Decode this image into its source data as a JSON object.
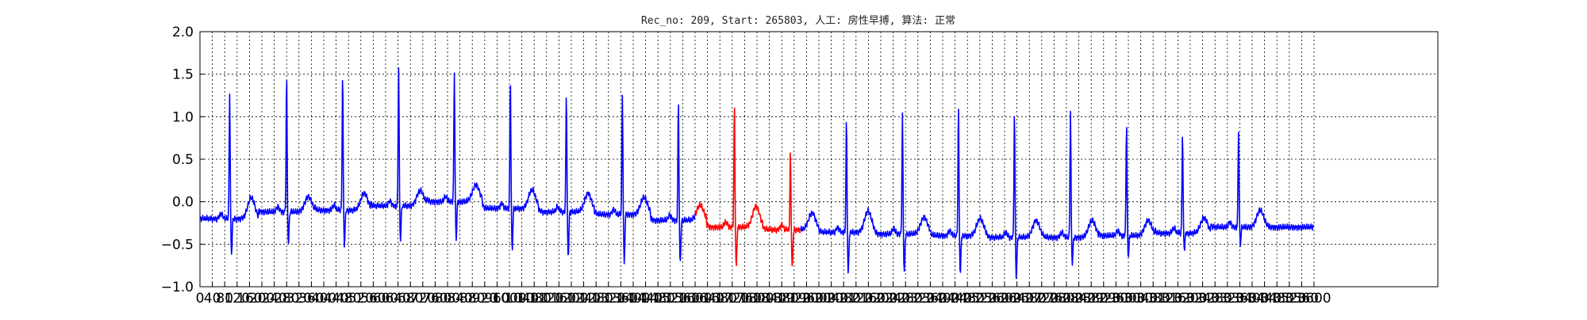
{
  "chart_data": {
    "type": "line",
    "title": "Rec_no: 209, Start: 265803, 人工: 房性早搏, 算法: 正常",
    "xlabel": "",
    "ylabel": "",
    "xlim": [
      0,
      4000
    ],
    "ylim": [
      -1.0,
      2.0
    ],
    "grid": true,
    "y_ticks": [
      "−1.0",
      "−0.5",
      "0.0",
      "0.5",
      "1.0",
      "1.5",
      "2.0"
    ],
    "y_tick_values": [
      -1.0,
      -0.5,
      0.0,
      0.5,
      1.0,
      1.5,
      2.0
    ],
    "x_tick_values": [
      0,
      40,
      80,
      120,
      160,
      200,
      240,
      280,
      320,
      360,
      400,
      440,
      480,
      520,
      560,
      600,
      640,
      680,
      720,
      760,
      800,
      840,
      880,
      920,
      960,
      1000,
      1040,
      1080,
      1120,
      1160,
      1200,
      1240,
      1280,
      1320,
      1360,
      1400,
      1440,
      1480,
      1520,
      1560,
      1600,
      1640,
      1680,
      1720,
      1760,
      1800,
      1840,
      1880,
      1920,
      1960,
      2000,
      2040,
      2080,
      2120,
      2160,
      2200,
      2240,
      2280,
      2320,
      2360,
      2400,
      2440,
      2480,
      2520,
      2560,
      2600,
      2640,
      2680,
      2720,
      2760,
      2800,
      2840,
      2880,
      2920,
      2960,
      3000,
      3040,
      3080,
      3120,
      3160,
      3200,
      3240,
      3280,
      3320,
      3360,
      3400,
      3440,
      3480,
      3520,
      3560,
      3600
    ],
    "x_tick_labels": [
      "0",
      "40",
      "80",
      "120",
      "160",
      "200",
      "240",
      "280",
      "320",
      "360",
      "400",
      "440",
      "480",
      "520",
      "560",
      "600",
      "640",
      "680",
      "720",
      "760",
      "800",
      "840",
      "880",
      "920",
      "960",
      "1000",
      "1040",
      "1080",
      "1120",
      "1160",
      "1200",
      "1240",
      "1280",
      "1320",
      "1360",
      "1400",
      "1440",
      "1480",
      "1520",
      "1560",
      "1600",
      "1640",
      "1680",
      "1720",
      "1760",
      "1800",
      "1840",
      "1880",
      "1920",
      "1960",
      "2000",
      "2040",
      "2080",
      "2120",
      "2160",
      "2200",
      "2240",
      "2280",
      "2320",
      "2360",
      "2400",
      "2440",
      "2480",
      "2520",
      "2560",
      "2600",
      "2640",
      "2680",
      "2720",
      "2760",
      "2800",
      "2840",
      "2880",
      "2920",
      "2960",
      "3000",
      "3040",
      "3080",
      "3120",
      "3160",
      "3200",
      "3240",
      "3280",
      "3320",
      "3360",
      "3400",
      "3440",
      "3480",
      "3520",
      "3560",
      "3600"
    ],
    "beats": [
      {
        "t": 96,
        "r": 1.28,
        "s": -0.66,
        "base": -0.2,
        "tw": 0.25,
        "color": "#0000ff"
      },
      {
        "t": 280,
        "r": 1.5,
        "s": -0.54,
        "base": -0.12,
        "tw": 0.18,
        "color": "#0000ff"
      },
      {
        "t": 461,
        "r": 1.52,
        "s": -0.56,
        "base": -0.1,
        "tw": 0.2,
        "color": "#0000ff"
      },
      {
        "t": 642,
        "r": 1.58,
        "s": -0.5,
        "base": -0.05,
        "tw": 0.18,
        "color": "#0000ff"
      },
      {
        "t": 822,
        "r": 1.55,
        "s": -0.5,
        "base": 0.0,
        "tw": 0.2,
        "color": "#0000ff"
      },
      {
        "t": 1003,
        "r": 1.46,
        "s": -0.62,
        "base": -0.08,
        "tw": 0.22,
        "color": "#0000ff"
      },
      {
        "t": 1184,
        "r": 1.28,
        "s": -0.73,
        "base": -0.12,
        "tw": 0.22,
        "color": "#0000ff"
      },
      {
        "t": 1365,
        "r": 1.27,
        "s": -0.8,
        "base": -0.15,
        "tw": 0.2,
        "color": "#0000ff"
      },
      {
        "t": 1546,
        "r": 1.21,
        "s": -0.8,
        "base": -0.22,
        "tw": 0.18,
        "color": "#0000ff"
      },
      {
        "t": 1727,
        "r": 1.16,
        "s": -0.84,
        "base": -0.3,
        "tw": 0.25,
        "color": "#ff0000"
      },
      {
        "t": 1908,
        "r": 0.58,
        "s": -0.84,
        "base": -0.33,
        "tw": 0.2,
        "color": "#0000ff"
      },
      {
        "t": 2089,
        "r": 0.98,
        "s": -0.9,
        "base": -0.36,
        "tw": 0.25,
        "color": "#0000ff"
      },
      {
        "t": 2270,
        "r": 1.03,
        "s": -0.88,
        "base": -0.38,
        "tw": 0.2,
        "color": "#0000ff"
      },
      {
        "t": 2451,
        "r": 1.14,
        "s": -0.89,
        "base": -0.4,
        "tw": 0.2,
        "color": "#0000ff"
      },
      {
        "t": 2632,
        "r": 1.07,
        "s": -0.95,
        "base": -0.42,
        "tw": 0.2,
        "color": "#0000ff"
      },
      {
        "t": 2813,
        "r": 1.09,
        "s": -0.75,
        "base": -0.42,
        "tw": 0.2,
        "color": "#0000ff"
      },
      {
        "t": 2994,
        "r": 0.94,
        "s": -0.67,
        "base": -0.4,
        "tw": 0.18,
        "color": "#0000ff"
      },
      {
        "t": 3175,
        "r": 0.84,
        "s": -0.58,
        "base": -0.37,
        "tw": 0.18,
        "color": "#0000ff"
      },
      {
        "t": 3356,
        "r": 0.84,
        "s": -0.52,
        "base": -0.3,
        "tw": 0.2,
        "color": "#0000ff"
      }
    ],
    "series": [
      {
        "color": "#0000ff",
        "x_range": [
          0,
          1600
        ]
      },
      {
        "color": "#ff0000",
        "x_range": [
          1600,
          1940
        ]
      },
      {
        "color": "#0000ff",
        "x_range": [
          1940,
          3600
        ]
      }
    ]
  }
}
